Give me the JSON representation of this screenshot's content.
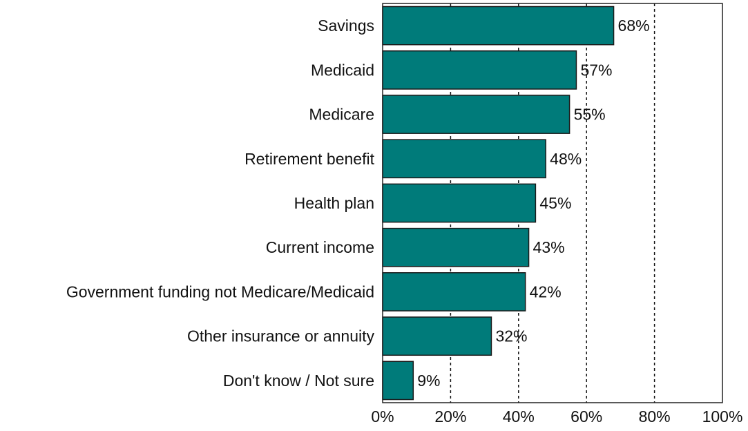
{
  "chart_data": {
    "type": "bar",
    "orientation": "horizontal",
    "categories": [
      "Savings",
      "Medicaid",
      "Medicare",
      "Retirement benefit",
      "Health plan",
      "Current income",
      "Government funding not Medicare/Medicaid",
      "Other insurance or annuity",
      "Don't know / Not sure"
    ],
    "values": [
      68,
      57,
      55,
      48,
      45,
      43,
      42,
      32,
      9
    ],
    "data_labels": [
      "68%",
      "57%",
      "55%",
      "48%",
      "45%",
      "43%",
      "42%",
      "32%",
      "9%"
    ],
    "xlim": [
      0,
      100
    ],
    "x_ticks": [
      0,
      20,
      40,
      60,
      80,
      100
    ],
    "x_tick_labels": [
      "0%",
      "20%",
      "40%",
      "60%",
      "80%",
      "100%"
    ],
    "grid": "vertical dashed",
    "title": "",
    "xlabel": "",
    "ylabel": "",
    "bar_color": "#007B7A",
    "bar_edge_color": "#1a1a1a"
  }
}
